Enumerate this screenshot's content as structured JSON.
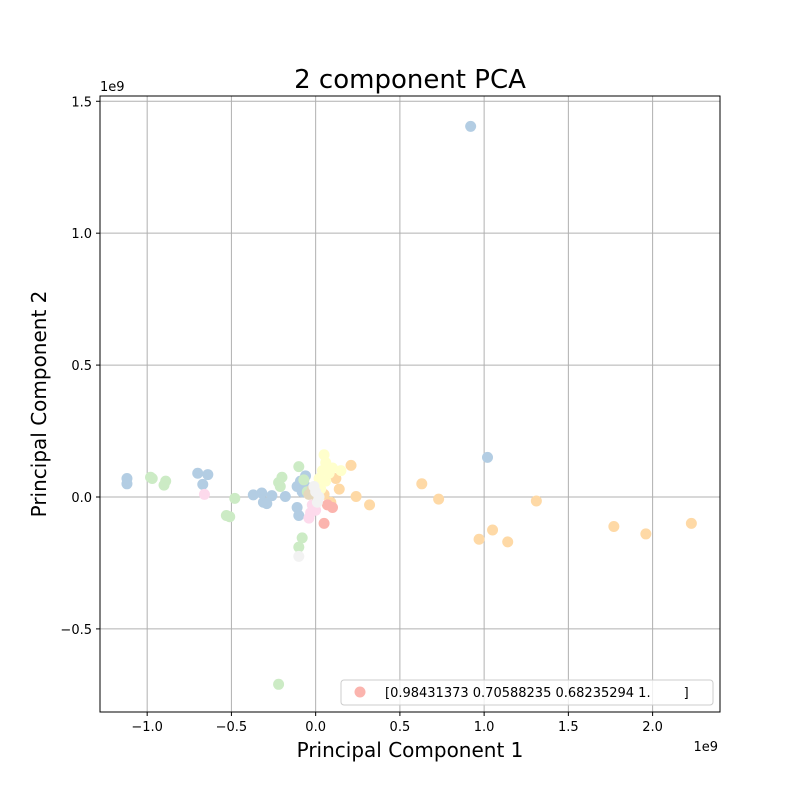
{
  "chart_data": {
    "type": "scatter",
    "title": "2 component PCA",
    "xlabel": "Principal Component 1",
    "ylabel": "Principal Component 2",
    "x_offset_label": "1e9",
    "y_offset_label": "1e9",
    "xlim": [
      -1.28,
      2.4
    ],
    "ylim": [
      -0.815,
      1.52
    ],
    "grid": true,
    "legend_position": "lower-right",
    "x_ticks": [
      {
        "value": -1.0,
        "label": "−1.0"
      },
      {
        "value": -0.5,
        "label": "−0.5"
      },
      {
        "value": 0.0,
        "label": "0.0"
      },
      {
        "value": 0.5,
        "label": "0.5"
      },
      {
        "value": 1.0,
        "label": "1.0"
      },
      {
        "value": 1.5,
        "label": "1.5"
      },
      {
        "value": 2.0,
        "label": "2.0"
      }
    ],
    "y_ticks": [
      {
        "value": -0.5,
        "label": "−0.5"
      },
      {
        "value": 0.0,
        "label": "0.0"
      },
      {
        "value": 0.5,
        "label": "0.5"
      },
      {
        "value": 1.0,
        "label": "1.0"
      },
      {
        "value": 1.5,
        "label": "1.5"
      }
    ],
    "legend": [
      {
        "label": "[0.98431373 0.70588235 0.68235294 1.        ]",
        "color": "#fbb4ae"
      }
    ],
    "series": [
      {
        "color": "#b3cde3",
        "points": [
          [
            0.92,
            1.405
          ],
          [
            -1.12,
            0.07
          ],
          [
            -1.12,
            0.05
          ],
          [
            -0.7,
            0.09
          ],
          [
            -0.64,
            0.085
          ],
          [
            -0.67,
            0.048
          ],
          [
            -0.37,
            0.008
          ],
          [
            -0.32,
            0.015
          ],
          [
            -0.31,
            -0.02
          ],
          [
            -0.29,
            -0.025
          ],
          [
            -0.26,
            0.005
          ],
          [
            -0.18,
            0.002
          ],
          [
            -0.11,
            0.04
          ],
          [
            -0.11,
            -0.04
          ],
          [
            -0.1,
            -0.07
          ],
          [
            -0.09,
            0.06
          ],
          [
            -0.06,
            0.08
          ],
          [
            -0.08,
            0.02
          ],
          [
            -0.06,
            0.04
          ],
          [
            1.02,
            0.15
          ]
        ]
      },
      {
        "color": "#ccebc5",
        "points": [
          [
            -0.98,
            0.075
          ],
          [
            -0.97,
            0.07
          ],
          [
            -0.89,
            0.06
          ],
          [
            -0.9,
            0.045
          ],
          [
            -0.53,
            -0.07
          ],
          [
            -0.51,
            -0.075
          ],
          [
            -0.48,
            -0.005
          ],
          [
            -0.22,
            0.055
          ],
          [
            -0.2,
            0.075
          ],
          [
            -0.21,
            0.04
          ],
          [
            -0.1,
            0.115
          ],
          [
            -0.08,
            -0.155
          ],
          [
            -0.1,
            -0.19
          ],
          [
            -0.22,
            -0.71
          ],
          [
            -0.07,
            0.065
          ],
          [
            -0.05,
            0.02
          ]
        ]
      },
      {
        "color": "#fed9a6",
        "points": [
          [
            0.21,
            0.12
          ],
          [
            0.12,
            0.07
          ],
          [
            0.14,
            0.03
          ],
          [
            0.24,
            0.002
          ],
          [
            0.32,
            -0.03
          ],
          [
            0.63,
            0.05
          ],
          [
            0.73,
            -0.008
          ],
          [
            0.97,
            -0.16
          ],
          [
            1.05,
            -0.125
          ],
          [
            1.14,
            -0.17
          ],
          [
            1.31,
            -0.015
          ],
          [
            1.77,
            -0.112
          ],
          [
            1.96,
            -0.14
          ],
          [
            2.23,
            -0.1
          ],
          [
            0.05,
            0.01
          ],
          [
            0.09,
            -0.02
          ]
        ]
      },
      {
        "color": "#ffffcc",
        "points": [
          [
            0.05,
            0.16
          ],
          [
            0.06,
            0.13
          ],
          [
            0.04,
            0.1
          ],
          [
            0.08,
            0.09
          ],
          [
            0.02,
            0.07
          ],
          [
            0.1,
            0.11
          ],
          [
            0.15,
            0.1
          ],
          [
            0.06,
            0.06
          ],
          [
            0.03,
            0.03
          ]
        ]
      },
      {
        "color": "#fddaec",
        "points": [
          [
            -0.66,
            0.01
          ],
          [
            -0.04,
            -0.08
          ],
          [
            -0.03,
            -0.06
          ],
          [
            0.0,
            -0.05
          ],
          [
            -0.02,
            -0.03
          ]
        ]
      },
      {
        "color": "#fbb4ae",
        "points": [
          [
            0.05,
            -0.1
          ],
          [
            0.1,
            -0.04
          ],
          [
            0.07,
            -0.03
          ]
        ]
      },
      {
        "color": "#e5d8bd",
        "points": [
          [
            -0.04,
            0.01
          ],
          [
            0.01,
            -0.01
          ],
          [
            -0.02,
            0.03
          ]
        ]
      },
      {
        "color": "#f2f2f2",
        "points": [
          [
            -0.1,
            -0.225
          ],
          [
            0.0,
            0.02
          ],
          [
            0.02,
            0.0
          ],
          [
            -0.01,
            0.04
          ],
          [
            0.01,
            -0.02
          ]
        ]
      }
    ]
  }
}
